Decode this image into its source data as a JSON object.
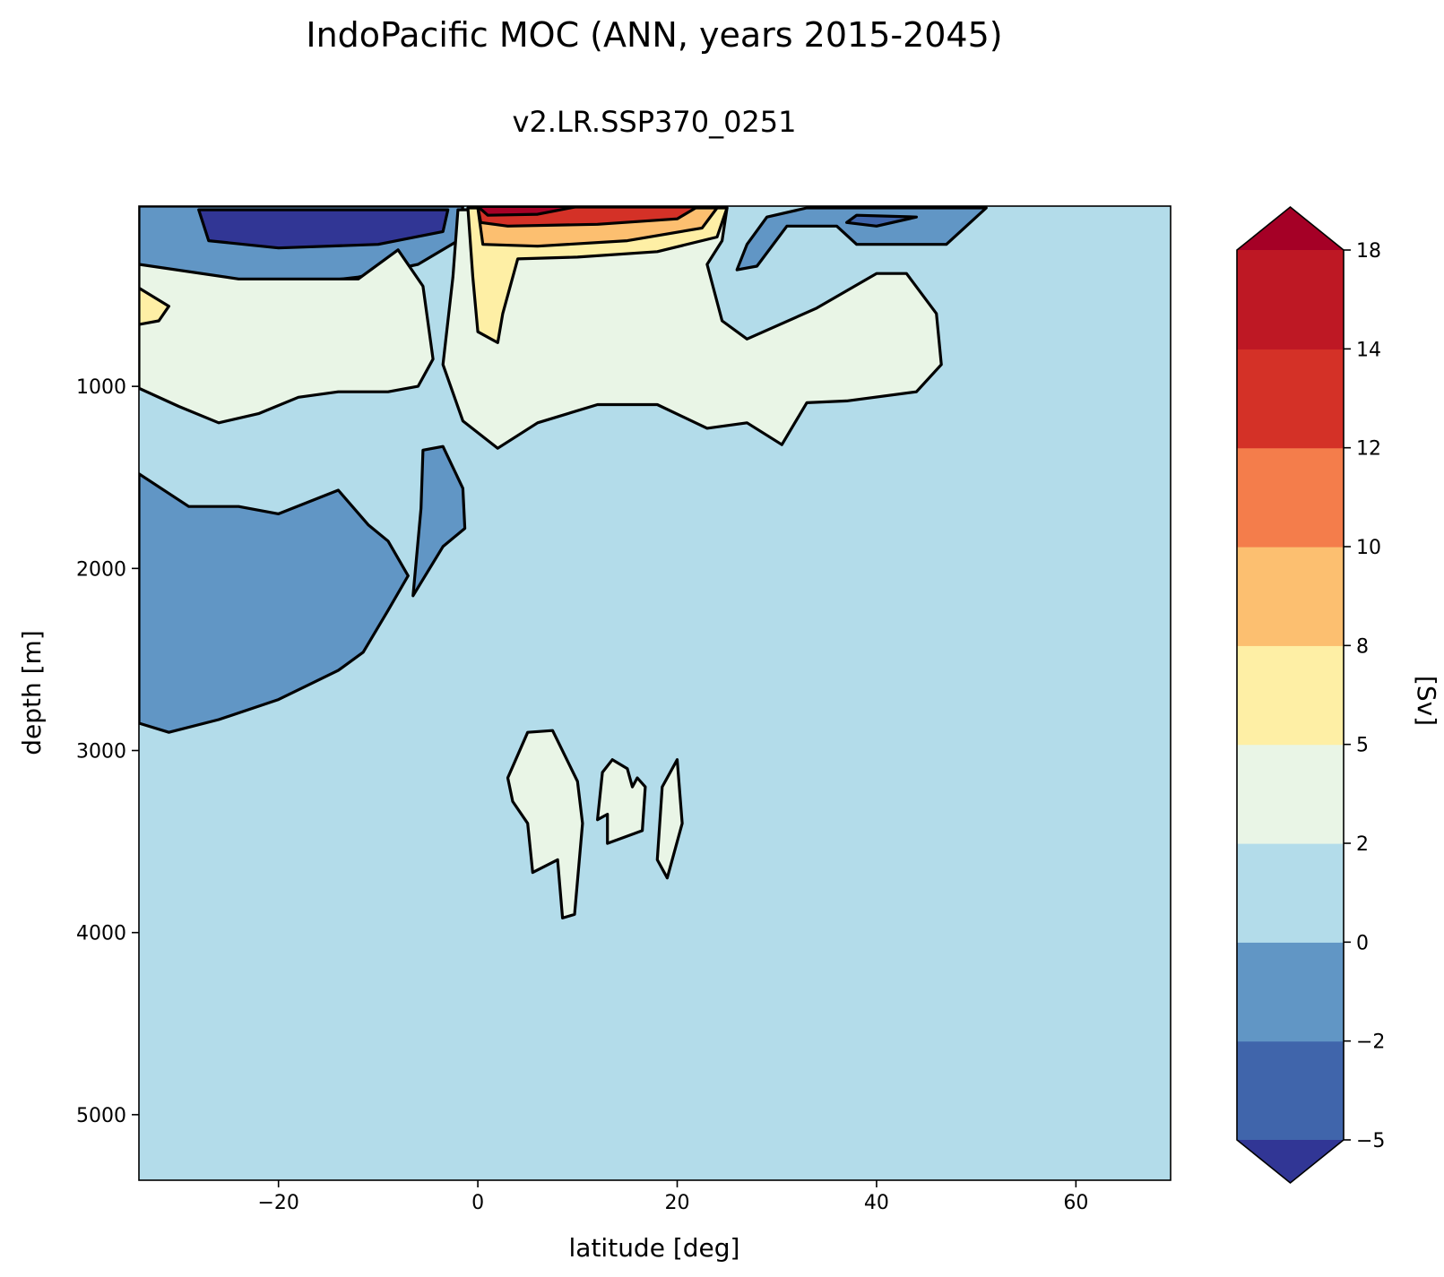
{
  "chart_data": {
    "type": "contourf",
    "title": "IndoPacific MOC (ANN, years 2015-2045)",
    "subtitle": "v2.LR.SSP370_0251",
    "xlabel": "latitude [deg]",
    "ylabel": "depth [m]",
    "xlim": [
      -34,
      69.5
    ],
    "ylim": [
      5360,
      10
    ],
    "y_inverted": true,
    "x_ticks": [
      {
        "value": -20,
        "label": "−20"
      },
      {
        "value": 0,
        "label": "0"
      },
      {
        "value": 20,
        "label": "20"
      },
      {
        "value": 40,
        "label": "40"
      },
      {
        "value": 60,
        "label": "60"
      }
    ],
    "y_ticks": [
      {
        "value": 1000,
        "label": "1000"
      },
      {
        "value": 2000,
        "label": "2000"
      },
      {
        "value": 3000,
        "label": "3000"
      },
      {
        "value": 4000,
        "label": "4000"
      },
      {
        "value": 5000,
        "label": "5000"
      }
    ],
    "background_level_color": "#b3dcea",
    "colorbar": {
      "label": "[Sv]",
      "extend": "both",
      "levels": [
        -5,
        -2,
        0,
        2,
        5,
        8,
        10,
        12,
        14,
        18
      ],
      "tick_labels": [
        "−5",
        "−2",
        "0",
        "2",
        "5",
        "8",
        "10",
        "12",
        "14",
        "18"
      ],
      "colors": [
        "#4065ab",
        "#6196c5",
        "#b3dcea",
        "#e9f5e6",
        "#feefa5",
        "#fcbf70",
        "#f47d4b",
        "#d43127",
        "#be1824"
      ],
      "under_color": "#313695",
      "over_color": "#a50026"
    },
    "regions": [
      {
        "name": "south-surface-negative-cell",
        "color": "#6196c5",
        "points": [
          [
            -34,
            10
          ],
          [
            -1.5,
            10
          ],
          [
            -2,
            200
          ],
          [
            -6,
            330
          ],
          [
            -12,
            400
          ],
          [
            -20,
            450
          ],
          [
            -28,
            420
          ],
          [
            -34,
            380
          ]
        ]
      },
      {
        "name": "south-surface-strong-negative-core",
        "color": "#313695",
        "points": [
          [
            -28,
            30
          ],
          [
            -3,
            30
          ],
          [
            -3.5,
            150
          ],
          [
            -10,
            220
          ],
          [
            -20,
            240
          ],
          [
            -27,
            200
          ]
        ]
      },
      {
        "name": "south-intermediate-positive-cell",
        "color": "#e9f5e6",
        "points": [
          [
            -34,
            330
          ],
          [
            -24,
            410
          ],
          [
            -12,
            410
          ],
          [
            -8,
            250
          ],
          [
            -5.5,
            450
          ],
          [
            -4.5,
            850
          ],
          [
            -6,
            1000
          ],
          [
            -9,
            1030
          ],
          [
            -14,
            1030
          ],
          [
            -18,
            1060
          ],
          [
            -22,
            1150
          ],
          [
            -26,
            1200
          ],
          [
            -30,
            1110
          ],
          [
            -34,
            1010
          ]
        ]
      },
      {
        "name": "south-intermediate-weak-core",
        "color": "#feefa5",
        "points": [
          [
            -34,
            460
          ],
          [
            -31,
            560
          ],
          [
            -32,
            640
          ],
          [
            -34,
            660
          ]
        ]
      },
      {
        "name": "south-deep-negative-cell",
        "color": "#6196c5",
        "points": [
          [
            -34,
            1480
          ],
          [
            -29,
            1660
          ],
          [
            -24,
            1660
          ],
          [
            -20,
            1700
          ],
          [
            -14,
            1570
          ],
          [
            -11,
            1760
          ],
          [
            -9,
            1850
          ],
          [
            -7,
            2040
          ],
          [
            -9,
            2230
          ],
          [
            -11.5,
            2460
          ],
          [
            -14,
            2560
          ],
          [
            -20,
            2720
          ],
          [
            -26,
            2830
          ],
          [
            -31,
            2900
          ],
          [
            -34,
            2850
          ]
        ]
      },
      {
        "name": "equatorial-deep-negative-tongue",
        "color": "#6196c5",
        "points": [
          [
            -5.5,
            1350
          ],
          [
            -3.5,
            1330
          ],
          [
            -1.5,
            1560
          ],
          [
            -1.3,
            1780
          ],
          [
            -3.5,
            1880
          ],
          [
            -6.5,
            2150
          ],
          [
            -5.7,
            1670
          ]
        ]
      },
      {
        "name": "north-positive-cell",
        "color": "#e9f5e6",
        "points": [
          [
            -2,
            30
          ],
          [
            25,
            20
          ],
          [
            24.5,
            200
          ],
          [
            23,
            330
          ],
          [
            24.5,
            640
          ],
          [
            27,
            740
          ],
          [
            34,
            570
          ],
          [
            40,
            380
          ],
          [
            43,
            380
          ],
          [
            46,
            600
          ],
          [
            46.5,
            880
          ],
          [
            44,
            1030
          ],
          [
            37,
            1080
          ],
          [
            33,
            1090
          ],
          [
            30.5,
            1320
          ],
          [
            27,
            1200
          ],
          [
            23,
            1230
          ],
          [
            18,
            1100
          ],
          [
            12,
            1100
          ],
          [
            6,
            1200
          ],
          [
            2,
            1340
          ],
          [
            -1.5,
            1190
          ],
          [
            -3.5,
            880
          ],
          [
            -2.5,
            400
          ]
        ]
      },
      {
        "name": "north-positive-strong-core",
        "color": "#feefa5",
        "points": [
          [
            -1,
            20
          ],
          [
            25,
            20
          ],
          [
            24,
            180
          ],
          [
            18,
            260
          ],
          [
            10,
            290
          ],
          [
            4,
            300
          ],
          [
            2.5,
            600
          ],
          [
            2,
            760
          ],
          [
            0,
            700
          ],
          [
            -0.5,
            400
          ]
        ]
      },
      {
        "name": "north-positive-upper-core",
        "color": "#fcbf70",
        "points": [
          [
            0,
            20
          ],
          [
            24,
            20
          ],
          [
            22.5,
            130
          ],
          [
            15,
            200
          ],
          [
            6,
            230
          ],
          [
            0.5,
            220
          ]
        ]
      },
      {
        "name": "north-positive-top-core",
        "color": "#d43127",
        "points": [
          [
            0,
            15
          ],
          [
            22,
            15
          ],
          [
            20,
            80
          ],
          [
            12,
            110
          ],
          [
            3,
            120
          ],
          [
            0.3,
            100
          ]
        ]
      },
      {
        "name": "north-positive-max",
        "color": "#a50026",
        "points": [
          [
            0,
            12
          ],
          [
            10,
            12
          ],
          [
            6,
            55
          ],
          [
            1,
            60
          ]
        ]
      },
      {
        "name": "north-surface-negative-cell",
        "color": "#6196c5",
        "points": [
          [
            33,
            20
          ],
          [
            51,
            20
          ],
          [
            47,
            220
          ],
          [
            38,
            220
          ],
          [
            36,
            120
          ],
          [
            31,
            120
          ],
          [
            28,
            340
          ],
          [
            26,
            360
          ],
          [
            27,
            220
          ],
          [
            29,
            70
          ]
        ]
      },
      {
        "name": "north-surface-negative-core",
        "color": "#4065ab",
        "points": [
          [
            38,
            60
          ],
          [
            44,
            70
          ],
          [
            40,
            120
          ],
          [
            37,
            100
          ]
        ]
      },
      {
        "name": "deep-positive-blob-a",
        "color": "#e9f5e6",
        "points": [
          [
            3,
            3150
          ],
          [
            5,
            2900
          ],
          [
            7.5,
            2890
          ],
          [
            10,
            3170
          ],
          [
            10.5,
            3400
          ],
          [
            9.7,
            3900
          ],
          [
            8.5,
            3920
          ],
          [
            8,
            3600
          ],
          [
            5.5,
            3670
          ],
          [
            5,
            3400
          ],
          [
            3.5,
            3280
          ]
        ]
      },
      {
        "name": "deep-positive-blob-b",
        "color": "#e9f5e6",
        "points": [
          [
            12,
            3380
          ],
          [
            12.5,
            3120
          ],
          [
            13.5,
            3050
          ],
          [
            15,
            3100
          ],
          [
            15.5,
            3200
          ],
          [
            16,
            3150
          ],
          [
            16.8,
            3200
          ],
          [
            16.5,
            3440
          ],
          [
            15,
            3470
          ],
          [
            13,
            3510
          ],
          [
            13,
            3350
          ]
        ]
      },
      {
        "name": "deep-positive-blob-c",
        "color": "#e9f5e6",
        "points": [
          [
            18,
            3600
          ],
          [
            18.5,
            3200
          ],
          [
            20,
            3050
          ],
          [
            20.5,
            3400
          ],
          [
            19,
            3700
          ]
        ]
      }
    ]
  }
}
